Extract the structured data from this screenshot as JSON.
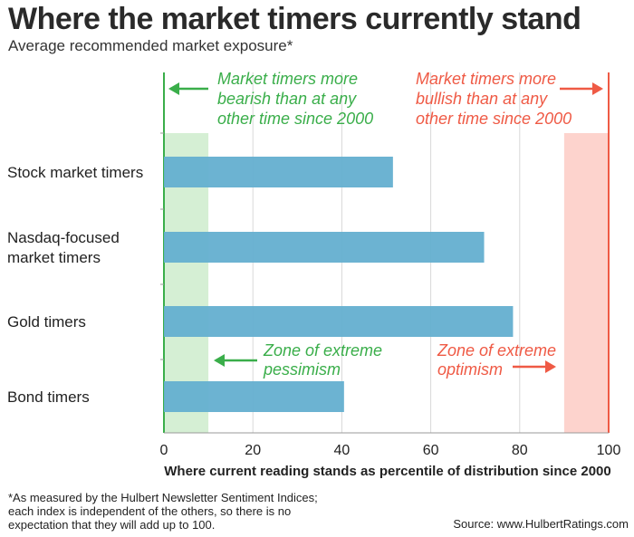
{
  "title": "Where the market timers currently stand",
  "subtitle": "Average recommended market exposure*",
  "footnote_lines": [
    "*As measured by the Hulbert Newsletter Sentiment Indices;",
    "each index is independent of the others, so there is no",
    "expectation that they will add up to 100."
  ],
  "source": "Source: www.HulbertRatings.com",
  "colors": {
    "bar": "#64afd0",
    "bearish": "#3aae4a",
    "bullish": "#ef5a45",
    "bearish_zone": "#d5efd4",
    "bullish_zone": "#fdd3cd",
    "grid": "#d9d9d9"
  },
  "chart_data": {
    "type": "bar",
    "orientation": "horizontal",
    "categories": [
      "Stock market timers",
      "Nasdaq-focused market timers",
      "Gold timers",
      "Bond timers"
    ],
    "category_lines": [
      [
        "Stock market timers"
      ],
      [
        "Nasdaq-focused",
        "market timers"
      ],
      [
        "Gold timers"
      ],
      [
        "Bond timers"
      ]
    ],
    "values": [
      51.5,
      72,
      78.5,
      40.5
    ],
    "xlabel": "Where current reading stands as percentile of distribution since 2000",
    "xlim": [
      0,
      100
    ],
    "xticks": [
      0,
      20,
      40,
      60,
      80,
      100
    ],
    "grid": true,
    "zones": [
      {
        "name": "Zone of extreme pessimism",
        "from": 0,
        "to": 10,
        "color": "#d5efd4"
      },
      {
        "name": "Zone of extreme optimism",
        "from": 90,
        "to": 100,
        "color": "#fdd3cd"
      }
    ],
    "annotations": {
      "bearish_top": [
        "Market timers more",
        "bearish than at any",
        "other time since 2000"
      ],
      "bullish_top": [
        "Market timers more",
        "bullish than at any",
        "other time since 2000"
      ],
      "pessimism_zone": [
        "Zone of extreme",
        "pessimism"
      ],
      "optimism_zone": [
        "Zone of extreme",
        "optimism"
      ]
    }
  }
}
